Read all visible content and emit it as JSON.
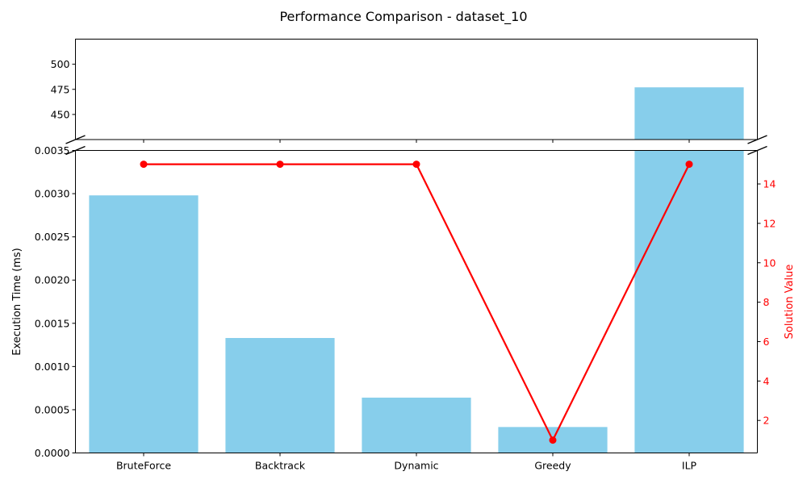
{
  "chart_data": {
    "type": "bar+line",
    "title": "Performance Comparison - dataset_10",
    "categories": [
      "BruteForce",
      "Backtrack",
      "Dynamic",
      "Greedy",
      "ILP"
    ],
    "bar_series": {
      "values": [
        0.00298,
        0.00133,
        0.00064,
        0.0003,
        477
      ],
      "color": "#87ceeb"
    },
    "line_series": {
      "values": [
        15,
        15,
        15,
        1,
        15
      ],
      "color": "#ff0000"
    },
    "ylabel_left": "Execution Time (ms)",
    "ylabel_right": "Solution Value",
    "broken_axis": true,
    "ylim_top_panel": [
      425,
      525
    ],
    "yticks_top_panel": [
      "450",
      "475",
      "500"
    ],
    "ylim_bottom_panel": [
      0,
      0.0035
    ],
    "yticks_bottom_panel": [
      "0.0000",
      "0.0005",
      "0.0010",
      "0.0015",
      "0.0020",
      "0.0025",
      "0.0030",
      "0.0035"
    ],
    "ylim_right": [
      0.35,
      15.7
    ],
    "yticks_right": [
      "2",
      "4",
      "6",
      "8",
      "10",
      "12",
      "14"
    ],
    "grid": false,
    "legend": "none"
  }
}
